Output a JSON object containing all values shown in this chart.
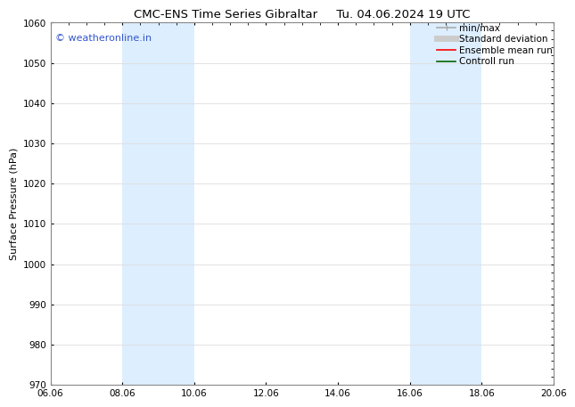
{
  "title_left": "CMC-ENS Time Series Gibraltar",
  "title_right": "Tu. 04.06.2024 19 UTC",
  "xlabel": "",
  "ylabel": "Surface Pressure (hPa)",
  "ylim": [
    970,
    1060
  ],
  "yticks": [
    970,
    980,
    990,
    1000,
    1010,
    1020,
    1030,
    1040,
    1050,
    1060
  ],
  "xtick_labels": [
    "06.06",
    "08.06",
    "10.06",
    "12.06",
    "14.06",
    "16.06",
    "18.06",
    "20.06"
  ],
  "xmin": 0.0,
  "xmax": 14.0,
  "shaded_bands": [
    {
      "x_start": 2.0,
      "x_end": 4.0
    },
    {
      "x_start": 10.0,
      "x_end": 12.0
    }
  ],
  "shade_color": "#ddeeff",
  "watermark_text": "© weatheronline.in",
  "watermark_color": "#3355cc",
  "legend_entries": [
    {
      "label": "min/max",
      "color": "#aaaaaa",
      "lw": 1.2,
      "style": "line_with_caps"
    },
    {
      "label": "Standard deviation",
      "color": "#cccccc",
      "lw": 5,
      "style": "line"
    },
    {
      "label": "Ensemble mean run",
      "color": "#ff0000",
      "lw": 1.2,
      "style": "line"
    },
    {
      "label": "Controll run",
      "color": "#006600",
      "lw": 1.2,
      "style": "line"
    }
  ],
  "bg_color": "#ffffff",
  "grid_color": "#dddddd",
  "title_fontsize": 9.5,
  "axis_label_fontsize": 8,
  "tick_fontsize": 7.5,
  "legend_fontsize": 7.5,
  "watermark_fontsize": 8
}
